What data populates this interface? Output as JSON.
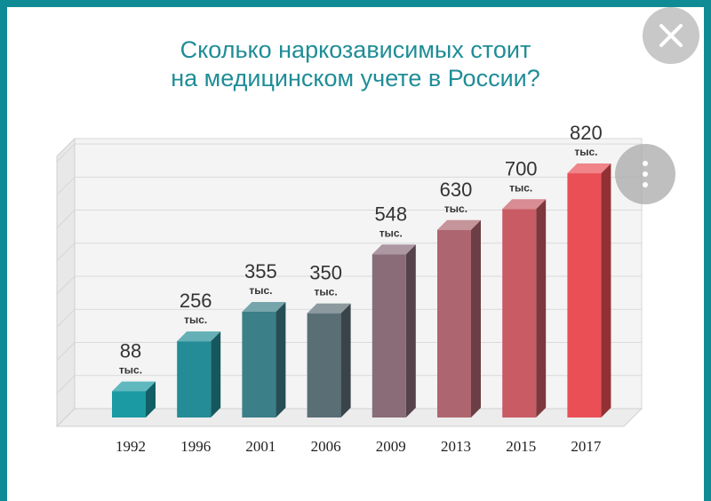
{
  "title": {
    "line1": "Сколько наркозависимых стоит",
    "line2": "на медицинском учете в России?"
  },
  "colors": {
    "frame": "#0f8b96",
    "title": "#1f8d97"
  },
  "icons": {
    "close": "close-icon",
    "more": "more-vertical-icon"
  },
  "chart_data": {
    "type": "bar",
    "title": "Сколько наркозависимых стоит на медицинском учете в России?",
    "categories": [
      "1992",
      "1996",
      "2001",
      "2006",
      "2009",
      "2013",
      "2015",
      "2017"
    ],
    "values": [
      88,
      256,
      355,
      350,
      548,
      630,
      700,
      820
    ],
    "value_labels": [
      "88",
      "256",
      "355",
      "350",
      "548",
      "630",
      "700",
      "820"
    ],
    "unit_label": "тыс.",
    "bar_colors": [
      "#1c9aa3",
      "#238c96",
      "#3b7f88",
      "#5a6e76",
      "#8a6b78",
      "#ad6670",
      "#c95b64",
      "#ea4f56"
    ],
    "ylim": [
      0,
      850
    ],
    "grid": true,
    "legend": "none"
  }
}
